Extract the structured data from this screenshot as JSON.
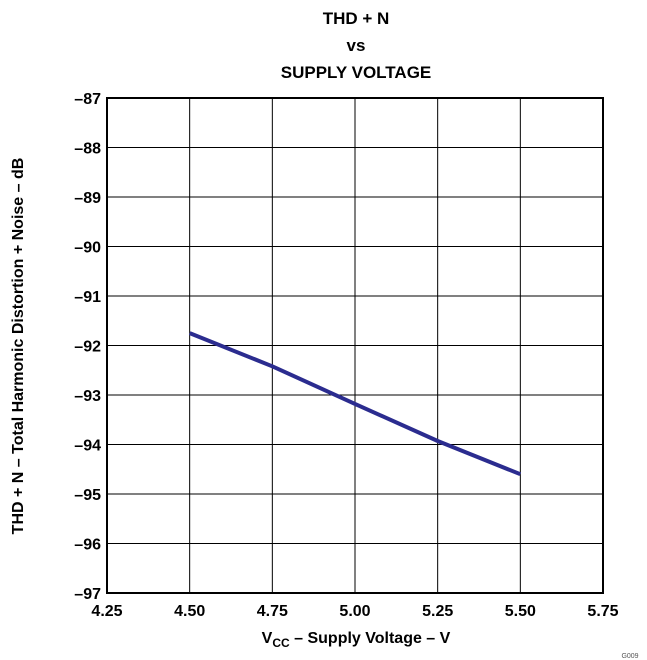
{
  "chart_data": {
    "type": "line",
    "title_lines": [
      "THD + N",
      "vs",
      "SUPPLY VOLTAGE"
    ],
    "xlabel": {
      "prefix": "V",
      "subscript": "CC",
      "suffix": " – Supply Voltage – V"
    },
    "ylabel": "THD + N – Total Harmonic Distortion + Noise – dB",
    "xlim": [
      4.25,
      5.75
    ],
    "ylim": [
      -97,
      -87
    ],
    "x_ticks": [
      "4.25",
      "4.50",
      "4.75",
      "5.00",
      "5.25",
      "5.50",
      "5.75"
    ],
    "y_ticks": [
      "–87",
      "–88",
      "–89",
      "–90",
      "–91",
      "–92",
      "–93",
      "–94",
      "–95",
      "–96",
      "–97"
    ],
    "grid": true,
    "series": [
      {
        "color": "#2b2c8f",
        "x": [
          4.5,
          4.75,
          5.0,
          5.25,
          5.5
        ],
        "y": [
          -91.75,
          -92.42,
          -93.18,
          -93.93,
          -94.6
        ]
      }
    ]
  },
  "figure_id": "G009"
}
